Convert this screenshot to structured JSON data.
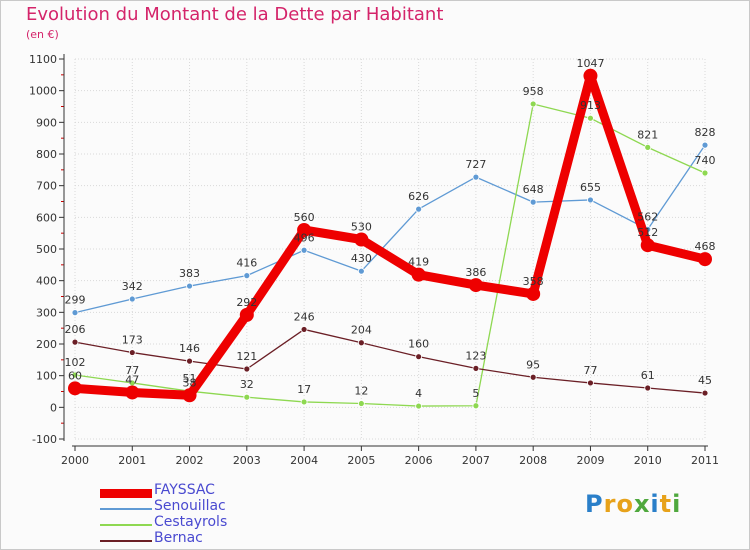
{
  "title": "Evolution du Montant de la Dette par Habitant",
  "subtitle": "(en €)",
  "logo_letters": [
    {
      "ch": "P",
      "color": "#2a7fc9"
    },
    {
      "ch": "r",
      "color": "#e7a21a"
    },
    {
      "ch": "o",
      "color": "#e7a21a"
    },
    {
      "ch": "x",
      "color": "#4fa83d"
    },
    {
      "ch": "i",
      "color": "#2a7fc9"
    },
    {
      "ch": "t",
      "color": "#e7a21a"
    },
    {
      "ch": "i",
      "color": "#4fa83d"
    }
  ],
  "chart_data": {
    "type": "line",
    "title": "Evolution du Montant de la Dette par Habitant",
    "subtitle": "(en €)",
    "xlabel": "",
    "ylabel": "",
    "ylim": [
      -100,
      1100
    ],
    "yticks": [
      -100,
      0,
      100,
      200,
      300,
      400,
      500,
      600,
      700,
      800,
      900,
      1000,
      1100
    ],
    "categories": [
      "2000",
      "2001",
      "2002",
      "2003",
      "2004",
      "2005",
      "2006",
      "2007",
      "2008",
      "2009",
      "2010",
      "2011"
    ],
    "grid": true,
    "legend_position": "bottom-left",
    "series": [
      {
        "name": "FAYSSAC",
        "color": "#ee0000",
        "values": [
          60,
          47,
          38,
          292,
          560,
          530,
          419,
          386,
          358,
          1047,
          512,
          468
        ]
      },
      {
        "name": "Senouillac",
        "color": "#5f9ad4",
        "values": [
          299,
          342,
          383,
          416,
          496,
          430,
          626,
          727,
          648,
          655,
          562,
          828
        ]
      },
      {
        "name": "Cestayrols",
        "color": "#8ed851",
        "values": [
          102,
          77,
          51,
          32,
          17,
          12,
          4,
          5,
          958,
          913,
          821,
          740
        ]
      },
      {
        "name": "Bernac",
        "color": "#6b1f26",
        "values": [
          206,
          173,
          146,
          121,
          246,
          204,
          160,
          123,
          95,
          77,
          61,
          45
        ]
      }
    ]
  }
}
